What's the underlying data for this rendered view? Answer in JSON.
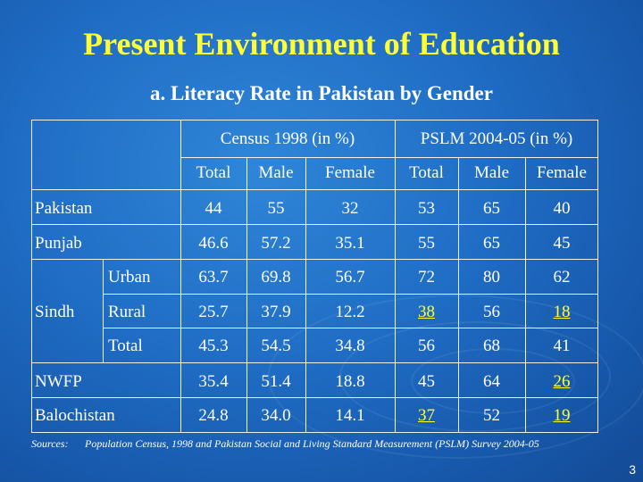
{
  "title": "Present Environment of Education",
  "subtitle": "a. Literacy Rate in Pakistan by Gender",
  "headers": {
    "census": "Census 1998 (in %)",
    "pslm": "PSLM 2004-05 (in %)",
    "sub": [
      "Total",
      "Male",
      "Female",
      "Total",
      "Male",
      "Female"
    ]
  },
  "rows": [
    {
      "label": "Pakistan",
      "values": [
        "44",
        "55",
        "32",
        "53",
        "65",
        "40"
      ]
    },
    {
      "label": "Punjab",
      "values": [
        "46.6",
        "57.2",
        "35.1",
        "55",
        "65",
        "45"
      ]
    },
    {
      "group": "Sindh",
      "label": "Urban",
      "values": [
        "63.7",
        "69.8",
        "56.7",
        "72",
        "80",
        "62"
      ]
    },
    {
      "group": "Sindh",
      "label": "Rural",
      "values": [
        "25.7",
        "37.9",
        "12.2",
        "38",
        "56",
        "18"
      ]
    },
    {
      "group": "Sindh",
      "label": "Total",
      "values": [
        "45.3",
        "54.5",
        "34.8",
        "56",
        "68",
        "41"
      ]
    },
    {
      "label": "NWFP",
      "values": [
        "35.4",
        "51.4",
        "18.8",
        "45",
        "64",
        "26"
      ]
    },
    {
      "label": "Balochistan",
      "values": [
        "24.8",
        "34.0",
        "14.1",
        "37",
        "52",
        "19"
      ]
    }
  ],
  "sindh_label": "Sindh",
  "sources_label": "Sources:",
  "sources_text": "Population Census, 1998 and Pakistan Social and Living Standard Measurement (PSLM) Survey 2004-05",
  "page_number": "3",
  "colors": {
    "title": "#ffff33",
    "highlight": "#ffff33",
    "background": "#1f6cc4"
  }
}
